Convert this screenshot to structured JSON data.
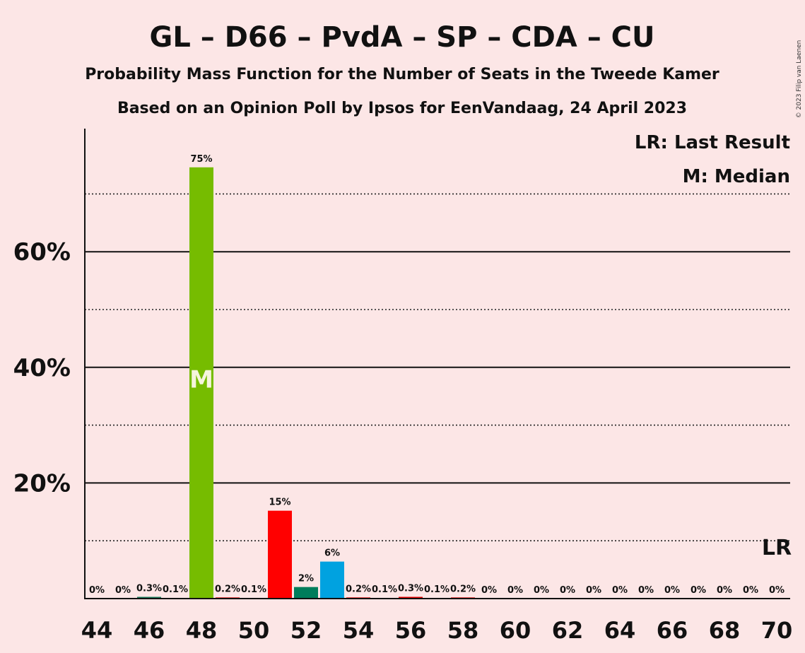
{
  "copyright": "© 2023 Filip van Laenen",
  "chart_data": {
    "type": "bar",
    "title": "GL – D66 – PvdA – SP – CDA – CU",
    "subtitle": "Probability Mass Function for the Number of Seats in the Tweede Kamer",
    "subtitle2": "Based on an Opinion Poll by Ipsos for EenVandaag, 24 April 2023",
    "legend": [
      "LR: Last Result",
      "M: Median"
    ],
    "legend_placement": "top-right",
    "xlabel": "",
    "ylabel": "",
    "xlim": [
      44,
      70
    ],
    "ylim": [
      0,
      80
    ],
    "yticks": [
      20,
      40,
      60
    ],
    "ytick_labels": [
      "20%",
      "40%",
      "60%"
    ],
    "xtick_labels": [
      "44",
      "46",
      "48",
      "50",
      "52",
      "54",
      "56",
      "58",
      "60",
      "62",
      "64",
      "66",
      "68",
      "70"
    ],
    "grid_solid": [
      20,
      40,
      60
    ],
    "grid_dotted": [
      10,
      30,
      50,
      70
    ],
    "median_seat": 48,
    "median_marker": "M",
    "last_result_seat": 70,
    "last_result_marker": "LR",
    "bars": [
      {
        "seat": 44,
        "value": 0,
        "label": "0%",
        "color": "#6b9e2a"
      },
      {
        "seat": 45,
        "value": 0,
        "label": "0%",
        "color": "#6b9e2a"
      },
      {
        "seat": 46,
        "value": 0.3,
        "label": "0.3%",
        "color": "#1a7a5a"
      },
      {
        "seat": 47,
        "value": 0.1,
        "label": "0.1%",
        "color": "#e00000"
      },
      {
        "seat": 48,
        "value": 74.6,
        "label": "75%",
        "color": "#76bc00"
      },
      {
        "seat": 49,
        "value": 0.2,
        "label": "0.2%",
        "color": "#e00000"
      },
      {
        "seat": 50,
        "value": 0.1,
        "label": "0.1%",
        "color": "#e00000"
      },
      {
        "seat": 51,
        "value": 15.2,
        "label": "15%",
        "color": "#ff0000"
      },
      {
        "seat": 52,
        "value": 2.0,
        "label": "2%",
        "color": "#007d5b"
      },
      {
        "seat": 53,
        "value": 6.4,
        "label": "6%",
        "color": "#00a2e0"
      },
      {
        "seat": 54,
        "value": 0.2,
        "label": "0.2%",
        "color": "#e00000"
      },
      {
        "seat": 55,
        "value": 0.1,
        "label": "0.1%",
        "color": "#e00000"
      },
      {
        "seat": 56,
        "value": 0.3,
        "label": "0.3%",
        "color": "#e00000"
      },
      {
        "seat": 57,
        "value": 0.1,
        "label": "0.1%",
        "color": "#e00000"
      },
      {
        "seat": 58,
        "value": 0.2,
        "label": "0.2%",
        "color": "#e00000"
      },
      {
        "seat": 59,
        "value": 0,
        "label": "0%",
        "color": "#e00000"
      },
      {
        "seat": 60,
        "value": 0,
        "label": "0%",
        "color": "#e00000"
      },
      {
        "seat": 61,
        "value": 0,
        "label": "0%",
        "color": "#e00000"
      },
      {
        "seat": 62,
        "value": 0,
        "label": "0%",
        "color": "#e00000"
      },
      {
        "seat": 63,
        "value": 0,
        "label": "0%",
        "color": "#e00000"
      },
      {
        "seat": 64,
        "value": 0,
        "label": "0%",
        "color": "#e00000"
      },
      {
        "seat": 65,
        "value": 0,
        "label": "0%",
        "color": "#e00000"
      },
      {
        "seat": 66,
        "value": 0,
        "label": "0%",
        "color": "#e00000"
      },
      {
        "seat": 67,
        "value": 0,
        "label": "0%",
        "color": "#e00000"
      },
      {
        "seat": 68,
        "value": 0,
        "label": "0%",
        "color": "#e00000"
      },
      {
        "seat": 69,
        "value": 0,
        "label": "0%",
        "color": "#e00000"
      },
      {
        "seat": 70,
        "value": 0,
        "label": "0%",
        "color": "#e00000"
      }
    ]
  }
}
